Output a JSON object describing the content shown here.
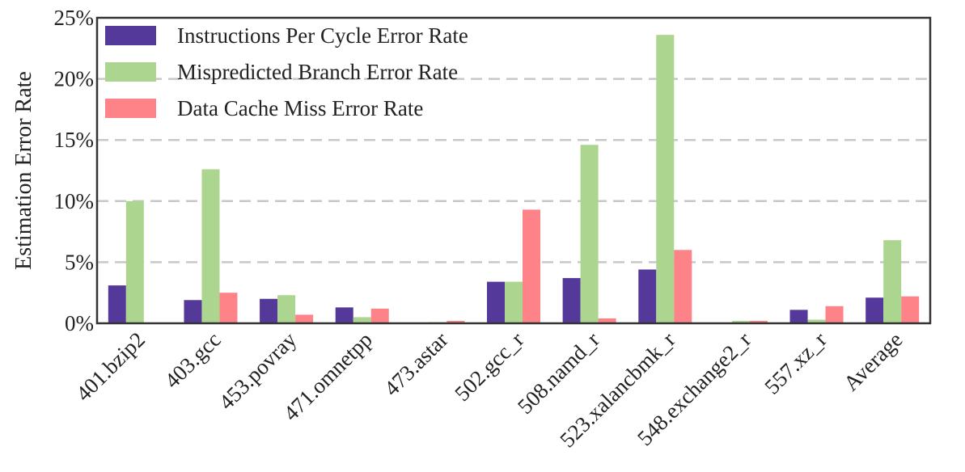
{
  "chart_data": {
    "type": "bar",
    "ylabel": "Estimation Error Rate",
    "xlabel": "",
    "ylim": [
      0,
      25
    ],
    "yticks": [
      "0%",
      "5%",
      "10%",
      "15%",
      "20%",
      "25%"
    ],
    "grid": "horizontal dashed",
    "legend_position": "top-left",
    "categories": [
      "401.bzip2",
      "403.gcc",
      "453.povray",
      "471.omnetpp",
      "473.astar",
      "502.gcc_r",
      "508.namd_r",
      "523.xalancbmk_r",
      "548.exchange2_r",
      "557.xz_r",
      "Average"
    ],
    "series": [
      {
        "name": "Instructions Per Cycle Error Rate",
        "color": "#55399a",
        "values": [
          3.1,
          1.9,
          2.0,
          1.3,
          0.0,
          3.4,
          3.7,
          4.4,
          0.0,
          1.1,
          2.1
        ]
      },
      {
        "name": "Mispredicted Branch Error Rate",
        "color": "#acd68f",
        "values": [
          10.0,
          12.6,
          2.3,
          0.5,
          0.1,
          3.4,
          14.6,
          23.6,
          0.2,
          0.3,
          6.8
        ]
      },
      {
        "name": "Data Cache Miss Error Rate",
        "color": "#fd8388",
        "values": [
          0.0,
          2.5,
          0.7,
          1.2,
          0.2,
          9.3,
          0.4,
          6.0,
          0.2,
          1.4,
          2.2
        ]
      }
    ]
  }
}
